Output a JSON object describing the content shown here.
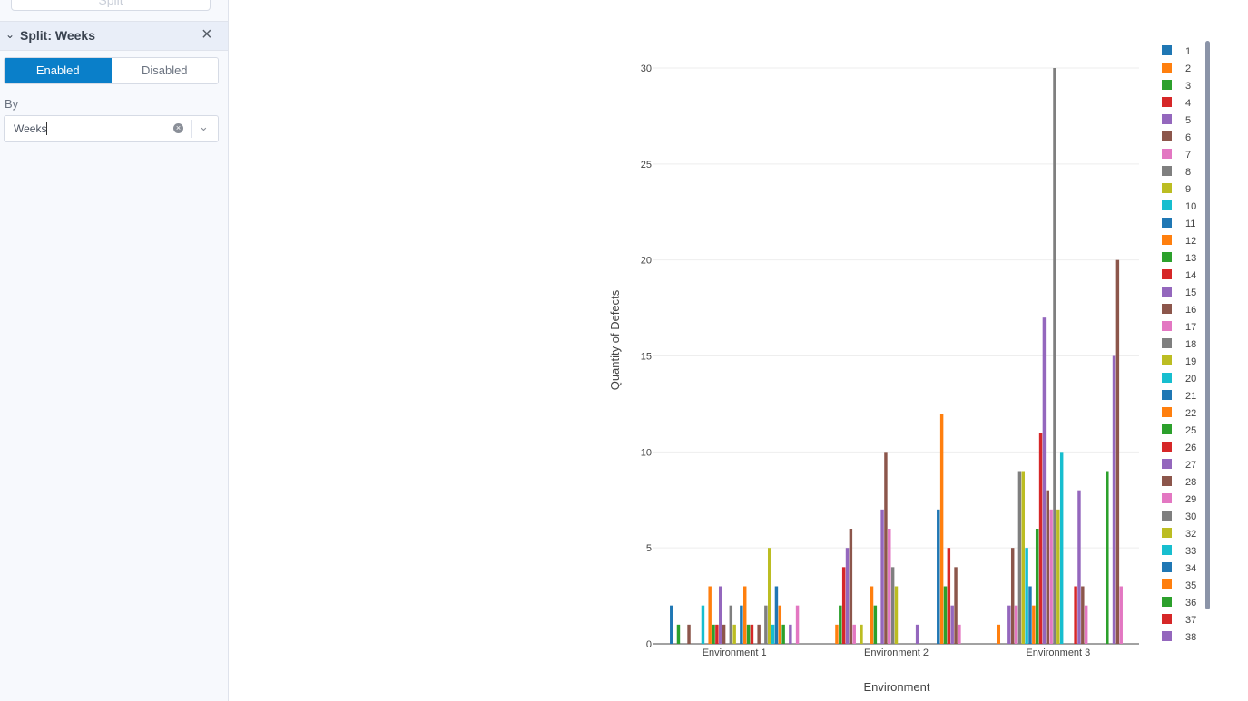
{
  "sidebar": {
    "split_button": "Split",
    "section_title": "Split: Weeks",
    "toggle": {
      "enabled": "Enabled",
      "disabled": "Disabled",
      "selected": "Enabled"
    },
    "by_label": "By",
    "by_value": "Weeks"
  },
  "chart_data": {
    "type": "bar",
    "mode": "grouped",
    "title": "",
    "xlabel": "Environment",
    "ylabel": "Quantity of Defects",
    "categories": [
      "Environment 1",
      "Environment 2",
      "Environment 3"
    ],
    "ylim": [
      0,
      30
    ],
    "yticks": [
      0,
      5,
      10,
      15,
      20,
      25,
      30
    ],
    "grid": true,
    "legend": "right",
    "colors": [
      "#1f77b4",
      "#ff7f0e",
      "#2ca02c",
      "#d62728",
      "#9467bd",
      "#8c564b",
      "#e377c2",
      "#7f7f7f",
      "#bcbd22",
      "#17becf"
    ],
    "series": [
      {
        "name": "1",
        "values": [
          2,
          null,
          null
        ]
      },
      {
        "name": "2",
        "values": [
          null,
          1,
          1
        ]
      },
      {
        "name": "3",
        "values": [
          1,
          2,
          null
        ]
      },
      {
        "name": "4",
        "values": [
          null,
          4,
          null
        ]
      },
      {
        "name": "5",
        "values": [
          null,
          5,
          2
        ]
      },
      {
        "name": "6",
        "values": [
          1,
          6,
          5
        ]
      },
      {
        "name": "7",
        "values": [
          null,
          1,
          2
        ]
      },
      {
        "name": "8",
        "values": [
          null,
          null,
          9
        ]
      },
      {
        "name": "9",
        "values": [
          null,
          1,
          9
        ]
      },
      {
        "name": "10",
        "values": [
          2,
          null,
          5
        ]
      },
      {
        "name": "11",
        "values": [
          null,
          null,
          3
        ]
      },
      {
        "name": "12",
        "values": [
          3,
          3,
          2
        ]
      },
      {
        "name": "13",
        "values": [
          1,
          2,
          6
        ]
      },
      {
        "name": "14",
        "values": [
          1,
          null,
          11
        ]
      },
      {
        "name": "15",
        "values": [
          3,
          7,
          17
        ]
      },
      {
        "name": "16",
        "values": [
          1,
          10,
          8
        ]
      },
      {
        "name": "17",
        "values": [
          null,
          6,
          7
        ]
      },
      {
        "name": "18",
        "values": [
          2,
          4,
          30
        ]
      },
      {
        "name": "19",
        "values": [
          1,
          3,
          7
        ]
      },
      {
        "name": "20",
        "values": [
          null,
          null,
          10
        ]
      },
      {
        "name": "21",
        "values": [
          2,
          null,
          null
        ]
      },
      {
        "name": "22",
        "values": [
          3,
          null,
          null
        ]
      },
      {
        "name": "25",
        "values": [
          1,
          null,
          null
        ]
      },
      {
        "name": "26",
        "values": [
          1,
          null,
          3
        ]
      },
      {
        "name": "27",
        "values": [
          null,
          1,
          8
        ]
      },
      {
        "name": "28",
        "values": [
          1,
          null,
          3
        ]
      },
      {
        "name": "29",
        "values": [
          null,
          null,
          2
        ]
      },
      {
        "name": "30",
        "values": [
          2,
          null,
          null
        ]
      },
      {
        "name": "32",
        "values": [
          5,
          null,
          null
        ]
      },
      {
        "name": "33",
        "values": [
          1,
          null,
          null
        ]
      },
      {
        "name": "34",
        "values": [
          3,
          7,
          null
        ]
      },
      {
        "name": "35",
        "values": [
          2,
          12,
          null
        ]
      },
      {
        "name": "36",
        "values": [
          1,
          3,
          9
        ]
      },
      {
        "name": "37",
        "values": [
          null,
          5,
          null
        ]
      },
      {
        "name": "38",
        "values": [
          1,
          2,
          15
        ]
      },
      {
        "name": "",
        "values": [
          null,
          4,
          20
        ]
      },
      {
        "name": "",
        "values": [
          2,
          1,
          3
        ]
      }
    ]
  }
}
